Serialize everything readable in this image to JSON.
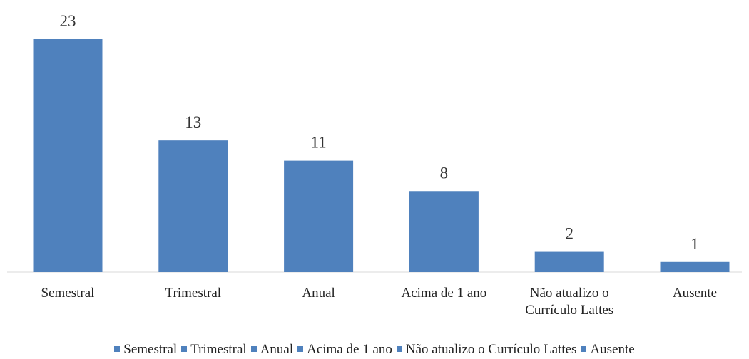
{
  "chart_data": {
    "type": "bar",
    "categories": [
      "Semestral",
      "Trimestral",
      "Anual",
      "Acima de 1 ano",
      "Não atualizo o Currículo Lattes",
      "Ausente"
    ],
    "values": [
      23,
      13,
      11,
      8,
      2,
      1
    ],
    "color": "#4f81bd",
    "legend": "bottom"
  }
}
